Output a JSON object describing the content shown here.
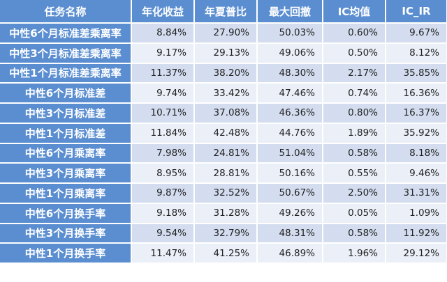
{
  "headers": [
    "任务名称",
    "年化收益",
    "年夏普比",
    "最大回撤",
    "IC均值",
    "IC_IR"
  ],
  "rows": [
    {
      "name": "中性6个月标准差乘离率",
      "values": [
        "8.84%",
        "27.90%",
        "50.03%",
        "0.60%",
        "9.67%"
      ]
    },
    {
      "name": "中性3个月标准差乘离率",
      "values": [
        "9.17%",
        "29.13%",
        "49.06%",
        "0.50%",
        "8.12%"
      ]
    },
    {
      "name": "中性1个月标准差乘离率",
      "values": [
        "11.37%",
        "38.20%",
        "48.30%",
        "2.17%",
        "35.85%"
      ]
    },
    {
      "name": "中性6个月标准差",
      "values": [
        "9.74%",
        "33.42%",
        "47.46%",
        "0.74%",
        "16.36%"
      ]
    },
    {
      "name": "中性3个月标准差",
      "values": [
        "10.71%",
        "37.08%",
        "46.36%",
        "0.80%",
        "16.37%"
      ]
    },
    {
      "name": "中性1个月标准差",
      "values": [
        "11.84%",
        "42.48%",
        "44.76%",
        "1.89%",
        "35.92%"
      ]
    },
    {
      "name": "中性6个月乘离率",
      "values": [
        "7.98%",
        "24.81%",
        "51.04%",
        "0.58%",
        "8.18%"
      ]
    },
    {
      "name": "中性3个月乘离率",
      "values": [
        "8.95%",
        "28.81%",
        "50.16%",
        "0.55%",
        "9.46%"
      ]
    },
    {
      "name": "中性1个月乘离率",
      "values": [
        "9.87%",
        "32.52%",
        "50.67%",
        "2.50%",
        "31.31%"
      ]
    },
    {
      "name": "中性6个月换手率",
      "values": [
        "9.18%",
        "31.28%",
        "49.26%",
        "0.05%",
        "1.09%"
      ]
    },
    {
      "name": "中性3个月换手率",
      "values": [
        "9.54%",
        "32.79%",
        "48.31%",
        "0.58%",
        "11.92%"
      ]
    },
    {
      "name": "中性1个月换手率",
      "values": [
        "11.47%",
        "41.25%",
        "46.89%",
        "1.96%",
        "29.12%"
      ]
    }
  ],
  "colors": {
    "header_bg": "#5b8ed0",
    "row_odd_bg": "#d3ddef",
    "row_even_bg": "#eaeff8",
    "header_text": "#ffffff"
  }
}
